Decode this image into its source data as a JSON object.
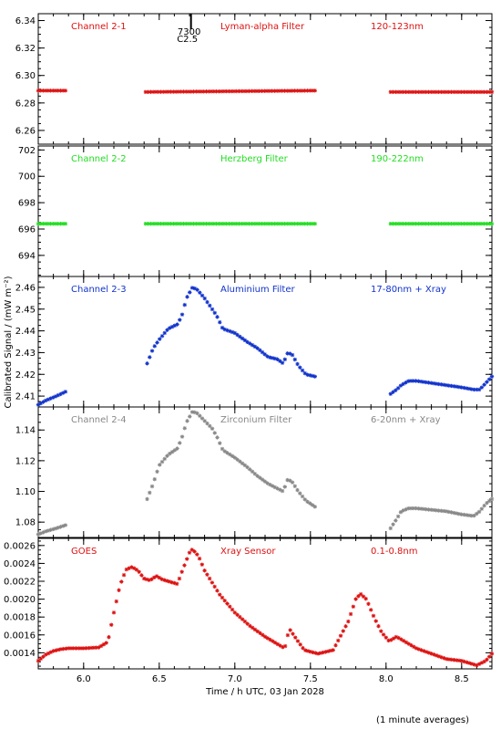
{
  "chart_data": {
    "type": "scatter",
    "xlabel": "Time / h UTC, 03 Jan 2028",
    "ylabel": "Calibrated Signal / (mW m⁻²)",
    "footnote": "(1 minute averages)",
    "xlim": [
      5.7,
      8.7
    ],
    "xticks": [
      "6.0",
      "6.5",
      "7.0",
      "7.5",
      "8.0",
      "8.5"
    ],
    "event_marker": {
      "x": 6.71,
      "labels": [
        "7300",
        "C2.5"
      ]
    },
    "panels": [
      {
        "channel": "Channel 2-1",
        "filter": "Lyman-alpha Filter",
        "band": "120-123nm",
        "color": "#dd1111",
        "ylim": [
          6.25,
          6.345
        ],
        "yticks": [
          "6.26",
          "6.28",
          "6.30",
          "6.32",
          "6.34"
        ],
        "segments": [
          {
            "x": [
              5.7,
              5.88
            ],
            "y": [
              6.289,
              6.289
            ]
          },
          {
            "x": [
              6.41,
              7.53
            ],
            "y": [
              6.288,
              6.289
            ]
          },
          {
            "x": [
              8.03,
              8.7
            ],
            "y": [
              6.288,
              6.288
            ]
          }
        ]
      },
      {
        "channel": "Channel 2-2",
        "filter": "Herzberg Filter",
        "band": "190-222nm",
        "color": "#22dd22",
        "ylim": [
          692.4,
          702.3
        ],
        "yticks": [
          "694",
          "696",
          "698",
          "700",
          "702"
        ],
        "segments": [
          {
            "x": [
              5.7,
              5.88
            ],
            "y": [
              696.4,
              696.4
            ]
          },
          {
            "x": [
              6.41,
              7.53
            ],
            "y": [
              696.4,
              696.4
            ]
          },
          {
            "x": [
              8.03,
              8.7
            ],
            "y": [
              696.4,
              696.4
            ]
          }
        ]
      },
      {
        "channel": "Channel 2-3",
        "filter": "Aluminium Filter",
        "band": "17-80nm + Xray",
        "color": "#1133cc",
        "ylim": [
          2.405,
          2.465
        ],
        "yticks": [
          "2.41",
          "2.42",
          "2.43",
          "2.44",
          "2.45",
          "2.46"
        ],
        "segments": [
          {
            "x": [
              5.7,
              5.75,
              5.82,
              5.88
            ],
            "y": [
              2.406,
              2.408,
              2.41,
              2.412
            ]
          },
          {
            "x": [
              6.42,
              6.46,
              6.5,
              6.56,
              6.62,
              6.65,
              6.68,
              6.72,
              6.75,
              6.8,
              6.85,
              6.88,
              6.92,
              7.0,
              7.08,
              7.15,
              7.22,
              7.28,
              7.32,
              7.35,
              7.38,
              7.42,
              7.47,
              7.53
            ],
            "y": [
              2.425,
              2.432,
              2.436,
              2.441,
              2.443,
              2.447,
              2.455,
              2.46,
              2.459,
              2.455,
              2.45,
              2.447,
              2.441,
              2.439,
              2.435,
              2.432,
              2.428,
              2.427,
              2.425,
              2.43,
              2.429,
              2.424,
              2.42,
              2.419
            ]
          },
          {
            "x": [
              8.03,
              8.07,
              8.1,
              8.15,
              8.2,
              8.3,
              8.4,
              8.5,
              8.58,
              8.62,
              8.66,
              8.7
            ],
            "y": [
              2.411,
              2.413,
              2.415,
              2.417,
              2.417,
              2.416,
              2.415,
              2.414,
              2.413,
              2.413,
              2.416,
              2.419
            ]
          }
        ]
      },
      {
        "channel": "Channel 2-4",
        "filter": "Zirconium Filter",
        "band": "6-20nm + Xray",
        "color": "#888888",
        "ylim": [
          1.07,
          1.155
        ],
        "yticks": [
          "1.08",
          "1.10",
          "1.12",
          "1.14"
        ],
        "segments": [
          {
            "x": [
              5.7,
              5.75,
              5.82,
              5.88
            ],
            "y": [
              1.072,
              1.074,
              1.076,
              1.078
            ]
          },
          {
            "x": [
              6.42,
              6.46,
              6.5,
              6.56,
              6.62,
              6.65,
              6.68,
              6.72,
              6.75,
              6.8,
              6.85,
              6.88,
              6.92,
              7.0,
              7.08,
              7.15,
              7.22,
              7.28,
              7.32,
              7.35,
              7.38,
              7.42,
              7.47,
              7.53
            ],
            "y": [
              1.095,
              1.105,
              1.117,
              1.124,
              1.128,
              1.135,
              1.145,
              1.152,
              1.151,
              1.146,
              1.141,
              1.136,
              1.127,
              1.122,
              1.116,
              1.11,
              1.105,
              1.102,
              1.1,
              1.108,
              1.106,
              1.1,
              1.094,
              1.09
            ]
          },
          {
            "x": [
              8.03,
              8.07,
              8.1,
              8.15,
              8.2,
              8.3,
              8.4,
              8.5,
              8.58,
              8.62,
              8.66,
              8.7
            ],
            "y": [
              1.076,
              1.082,
              1.087,
              1.089,
              1.089,
              1.088,
              1.087,
              1.085,
              1.084,
              1.087,
              1.092,
              1.095
            ]
          }
        ]
      },
      {
        "channel": "GOES",
        "filter": "Xray Sensor",
        "band": "0.1-0.8nm",
        "color": "#dd1111",
        "ylim": [
          0.00122,
          0.00268
        ],
        "yticks": [
          "0.0014",
          "0.0016",
          "0.0018",
          "0.0020",
          "0.0022",
          "0.0024",
          "0.0026"
        ],
        "segments": [
          {
            "x": [
              5.7,
              5.75,
              5.8,
              5.85,
              5.9,
              6.0,
              6.1,
              6.16,
              6.2,
              6.24,
              6.28,
              6.32,
              6.36,
              6.4,
              6.44,
              6.48,
              6.52,
              6.58,
              6.62,
              6.66,
              6.7,
              6.72,
              6.76,
              6.8,
              6.9,
              7.0,
              7.1,
              7.2,
              7.3,
              7.33,
              7.36,
              7.4,
              7.46,
              7.55,
              7.65,
              7.75,
              7.8,
              7.83,
              7.87,
              7.92,
              7.97,
              8.02,
              8.07,
              8.12,
              8.2,
              8.3,
              8.4,
              8.5,
              8.6,
              8.66,
              8.7
            ],
            "y": [
              0.00131,
              0.00138,
              0.00142,
              0.00144,
              0.00145,
              0.00145,
              0.00146,
              0.00152,
              0.00185,
              0.00215,
              0.00233,
              0.00236,
              0.00232,
              0.00223,
              0.00221,
              0.00226,
              0.00222,
              0.00219,
              0.00217,
              0.00235,
              0.00252,
              0.00256,
              0.00248,
              0.00232,
              0.00205,
              0.00185,
              0.0017,
              0.00158,
              0.00148,
              0.00145,
              0.00167,
              0.00157,
              0.00143,
              0.00139,
              0.00143,
              0.00175,
              0.002,
              0.00206,
              0.002,
              0.0018,
              0.00163,
              0.00153,
              0.00158,
              0.00153,
              0.00145,
              0.00139,
              0.00133,
              0.00131,
              0.00126,
              0.00131,
              0.00139
            ]
          }
        ]
      }
    ]
  }
}
